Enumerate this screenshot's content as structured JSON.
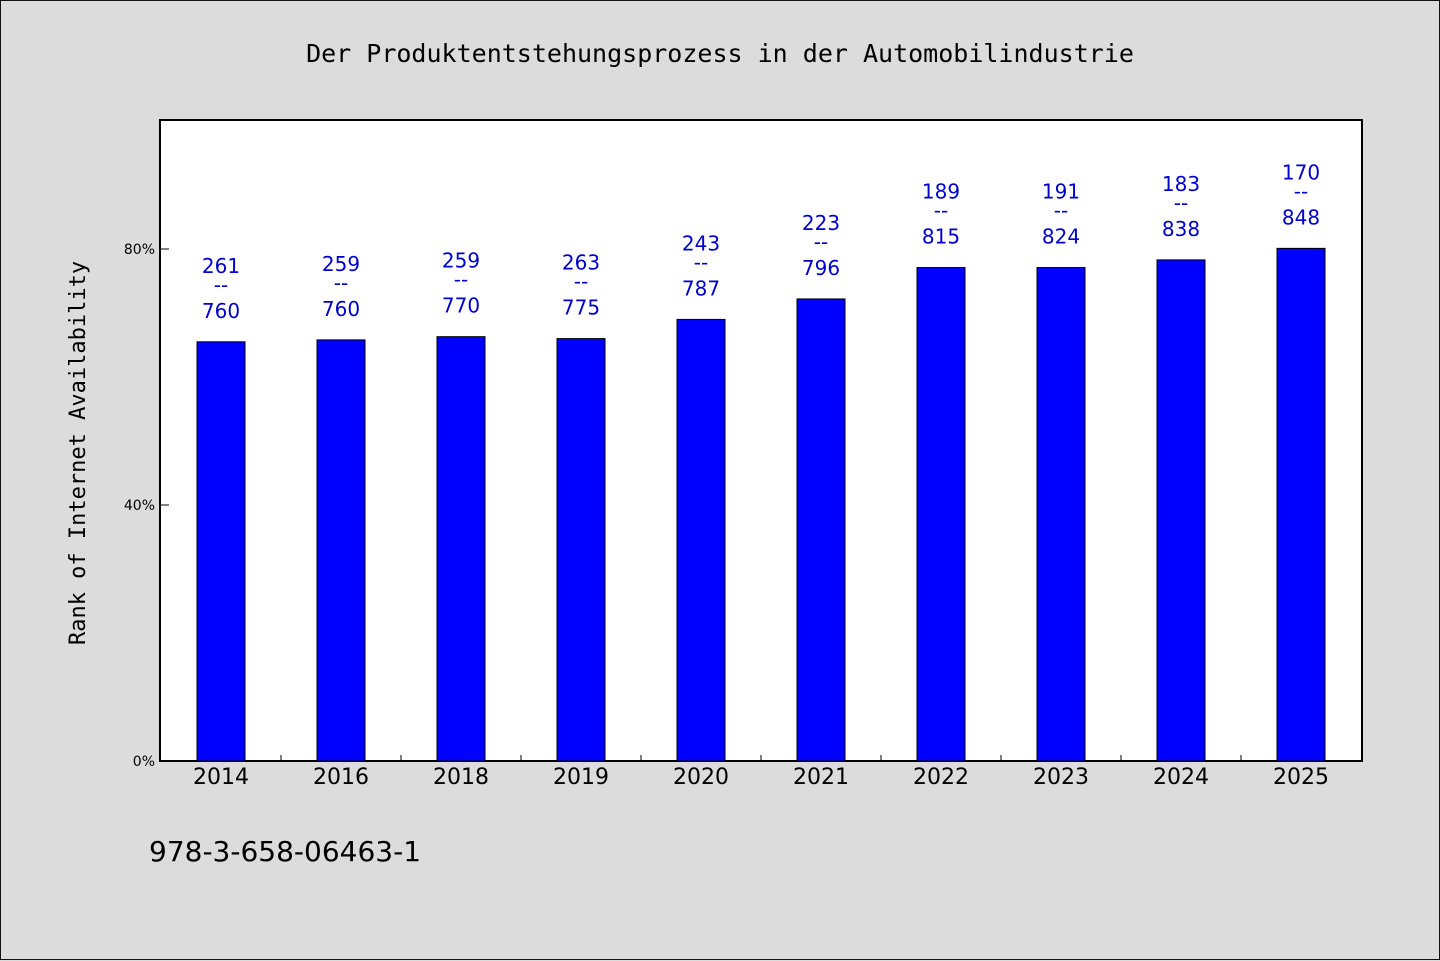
{
  "chart_data": {
    "type": "bar",
    "title": "Der Produktentstehungsprozess in der Automobilindustrie",
    "ylabel": "Rank of Internet Availability",
    "xlabel": "",
    "categories": [
      "2014",
      "2016",
      "2018",
      "2019",
      "2020",
      "2021",
      "2022",
      "2023",
      "2024",
      "2025"
    ],
    "values": [
      65.5,
      65.8,
      66.3,
      66.0,
      69.0,
      72.2,
      77.1,
      77.1,
      78.3,
      80.1
    ],
    "label_top": [
      "261",
      "259",
      "259",
      "263",
      "243",
      "223",
      "189",
      "191",
      "183",
      "170"
    ],
    "label_sep": "--",
    "label_bottom": [
      "760",
      "760",
      "770",
      "775",
      "787",
      "796",
      "815",
      "824",
      "838",
      "848"
    ],
    "ylim": [
      0,
      100
    ],
    "yticks": [
      0,
      40,
      80
    ],
    "ytick_labels": [
      "0%",
      "40%",
      "80%"
    ],
    "grid": false,
    "bar_color": "#0000ff",
    "label_color": "#0000cc",
    "plot_background": "#ffffff",
    "page_background": "#dcdcdc"
  },
  "footer": {
    "isbn": "978-3-658-06463-1"
  }
}
